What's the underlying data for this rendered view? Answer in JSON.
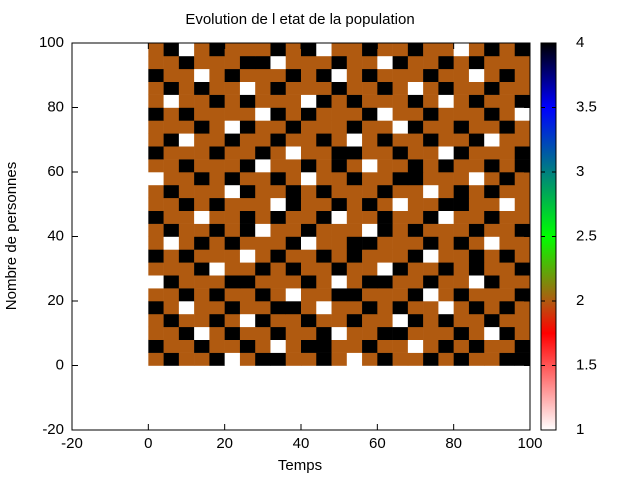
{
  "chart_data": {
    "type": "heatmap",
    "title": "Evolution de l etat de la population",
    "x_label": "Temps",
    "y_label": "Nombre de personnes",
    "xlim": [
      -20,
      100
    ],
    "ylim": [
      -20,
      100
    ],
    "xticks": [
      -20,
      0,
      20,
      40,
      60,
      80,
      100
    ],
    "yticks": [
      -20,
      0,
      20,
      40,
      60,
      80,
      100
    ],
    "x_bins": [
      0,
      4,
      8,
      12,
      16,
      20,
      24,
      28,
      32,
      36,
      40,
      44,
      48,
      52,
      56,
      60,
      64,
      68,
      72,
      76,
      80,
      84,
      88,
      92,
      96,
      100
    ],
    "y_bins": [
      0,
      4,
      8,
      12,
      16,
      20,
      24,
      28,
      32,
      36,
      40,
      44,
      48,
      52,
      56,
      60,
      64,
      68,
      72,
      76,
      80,
      84,
      88,
      92,
      96,
      100
    ],
    "clim": [
      1,
      4
    ],
    "cticks": [
      1,
      1.5,
      2,
      2.5,
      3,
      3.5,
      4
    ],
    "colormap": [
      {
        "value": 1,
        "color": "#ffffff"
      },
      {
        "value": 1.75,
        "color": "#ff0000"
      },
      {
        "value": 2,
        "color": "#b05a10"
      },
      {
        "value": 2.5,
        "color": "#00ff00"
      },
      {
        "value": 3,
        "color": "#008080"
      },
      {
        "value": 3.5,
        "color": "#0000ff"
      },
      {
        "value": 4,
        "color": "#000000"
      }
    ],
    "z": [
      [
        2,
        4,
        2,
        2,
        4,
        1,
        2,
        4,
        4,
        2,
        2,
        4,
        2,
        1,
        2,
        4,
        2,
        2,
        4,
        2,
        4,
        2,
        2,
        4,
        4
      ],
      [
        4,
        2,
        2,
        4,
        2,
        2,
        4,
        2,
        1,
        2,
        4,
        4,
        2,
        2,
        4,
        2,
        2,
        1,
        2,
        4,
        2,
        4,
        2,
        2,
        4
      ],
      [
        2,
        2,
        4,
        1,
        2,
        4,
        2,
        2,
        4,
        2,
        2,
        4,
        1,
        2,
        2,
        4,
        4,
        2,
        2,
        2,
        4,
        2,
        1,
        4,
        2
      ],
      [
        2,
        4,
        2,
        2,
        4,
        2,
        1,
        4,
        2,
        2,
        4,
        2,
        2,
        4,
        2,
        2,
        1,
        4,
        2,
        4,
        2,
        2,
        4,
        2,
        2
      ],
      [
        4,
        2,
        1,
        2,
        2,
        4,
        2,
        2,
        4,
        4,
        2,
        1,
        2,
        2,
        4,
        2,
        4,
        2,
        2,
        1,
        2,
        4,
        2,
        4,
        2
      ],
      [
        2,
        2,
        4,
        2,
        4,
        2,
        2,
        4,
        2,
        1,
        2,
        2,
        4,
        4,
        2,
        2,
        2,
        4,
        1,
        2,
        4,
        2,
        2,
        2,
        4
      ],
      [
        1,
        4,
        2,
        2,
        2,
        4,
        4,
        2,
        2,
        2,
        4,
        2,
        1,
        2,
        4,
        4,
        2,
        2,
        4,
        2,
        2,
        1,
        4,
        2,
        2
      ],
      [
        2,
        2,
        2,
        4,
        1,
        2,
        2,
        4,
        2,
        4,
        2,
        2,
        4,
        2,
        2,
        1,
        4,
        2,
        2,
        4,
        2,
        4,
        2,
        2,
        4
      ],
      [
        4,
        2,
        4,
        2,
        2,
        2,
        1,
        2,
        4,
        2,
        2,
        4,
        2,
        4,
        2,
        2,
        2,
        4,
        1,
        2,
        2,
        4,
        2,
        4,
        2
      ],
      [
        2,
        1,
        2,
        4,
        2,
        4,
        2,
        2,
        2,
        4,
        1,
        2,
        2,
        4,
        4,
        2,
        2,
        2,
        4,
        2,
        4,
        2,
        1,
        2,
        2
      ],
      [
        2,
        4,
        2,
        2,
        4,
        2,
        4,
        1,
        2,
        2,
        4,
        2,
        2,
        2,
        1,
        4,
        2,
        4,
        2,
        2,
        2,
        4,
        2,
        2,
        4
      ],
      [
        4,
        2,
        2,
        1,
        2,
        2,
        4,
        2,
        4,
        2,
        2,
        4,
        1,
        2,
        2,
        4,
        2,
        2,
        4,
        1,
        2,
        2,
        4,
        2,
        2
      ],
      [
        2,
        2,
        4,
        2,
        4,
        2,
        2,
        2,
        1,
        4,
        2,
        2,
        4,
        2,
        4,
        2,
        1,
        2,
        2,
        4,
        4,
        2,
        2,
        1,
        2
      ],
      [
        2,
        4,
        2,
        2,
        2,
        1,
        4,
        2,
        2,
        4,
        2,
        4,
        2,
        2,
        2,
        4,
        2,
        2,
        1,
        2,
        4,
        2,
        4,
        2,
        2
      ],
      [
        1,
        2,
        2,
        4,
        2,
        4,
        2,
        2,
        4,
        2,
        1,
        2,
        2,
        4,
        2,
        2,
        4,
        4,
        2,
        2,
        2,
        1,
        2,
        4,
        2
      ],
      [
        2,
        2,
        4,
        2,
        2,
        2,
        4,
        1,
        2,
        2,
        4,
        2,
        4,
        2,
        1,
        2,
        2,
        4,
        2,
        4,
        2,
        2,
        4,
        2,
        4
      ],
      [
        4,
        2,
        2,
        2,
        4,
        2,
        2,
        4,
        2,
        1,
        2,
        2,
        4,
        4,
        2,
        2,
        4,
        2,
        2,
        1,
        4,
        2,
        2,
        2,
        4
      ],
      [
        2,
        4,
        1,
        2,
        2,
        4,
        2,
        2,
        4,
        2,
        2,
        4,
        2,
        1,
        2,
        4,
        2,
        2,
        4,
        2,
        2,
        4,
        1,
        2,
        2
      ],
      [
        2,
        2,
        2,
        4,
        2,
        1,
        4,
        2,
        2,
        4,
        2,
        2,
        2,
        4,
        2,
        2,
        1,
        4,
        2,
        2,
        4,
        2,
        2,
        4,
        2
      ],
      [
        4,
        2,
        4,
        2,
        2,
        2,
        2,
        1,
        4,
        2,
        4,
        2,
        2,
        2,
        4,
        1,
        2,
        2,
        4,
        2,
        2,
        2,
        4,
        2,
        1
      ],
      [
        2,
        1,
        2,
        2,
        4,
        2,
        4,
        2,
        2,
        2,
        1,
        4,
        2,
        4,
        2,
        2,
        2,
        4,
        2,
        1,
        2,
        4,
        2,
        2,
        4
      ],
      [
        2,
        4,
        2,
        4,
        2,
        2,
        1,
        2,
        4,
        2,
        2,
        2,
        4,
        2,
        2,
        4,
        2,
        1,
        2,
        4,
        2,
        2,
        4,
        2,
        2
      ],
      [
        4,
        2,
        2,
        1,
        2,
        4,
        2,
        2,
        2,
        4,
        2,
        4,
        1,
        2,
        4,
        2,
        2,
        2,
        4,
        2,
        2,
        1,
        2,
        4,
        2
      ],
      [
        2,
        2,
        4,
        2,
        2,
        2,
        4,
        4,
        1,
        2,
        2,
        2,
        4,
        2,
        2,
        1,
        4,
        2,
        2,
        4,
        2,
        4,
        2,
        2,
        2
      ],
      [
        2,
        4,
        1,
        2,
        4,
        2,
        2,
        2,
        4,
        2,
        4,
        1,
        2,
        2,
        4,
        2,
        2,
        4,
        2,
        2,
        1,
        2,
        4,
        2,
        4
      ]
    ]
  }
}
